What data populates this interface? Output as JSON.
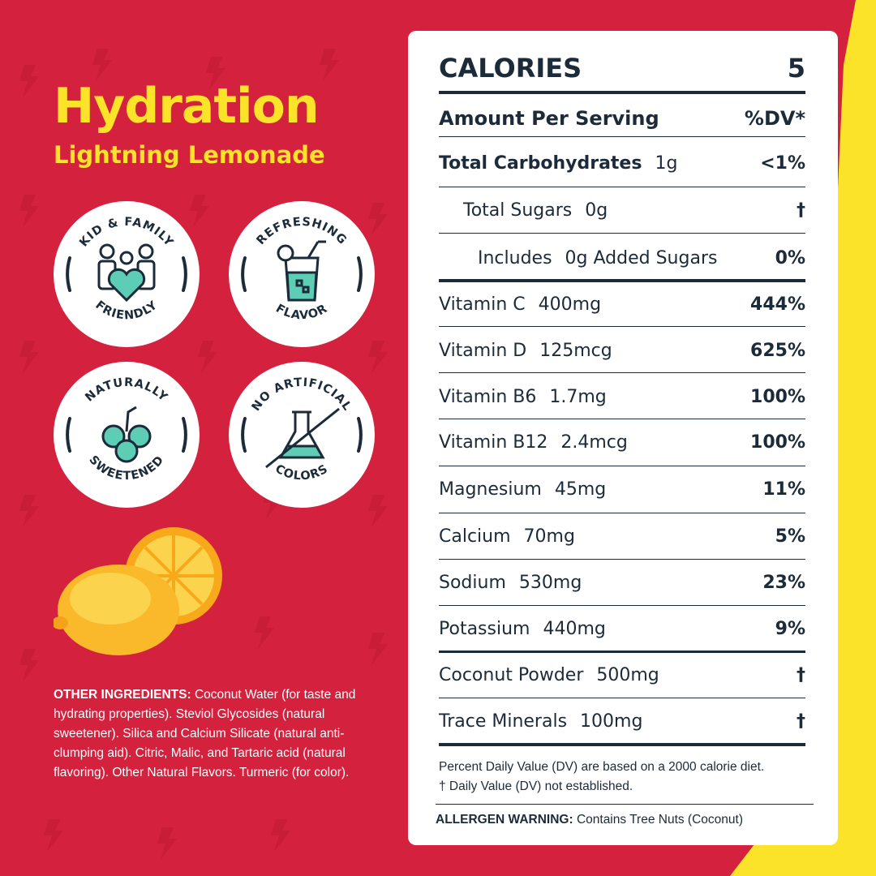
{
  "brand": {
    "title": "Hydration",
    "subtitle": "Lightning Lemonade",
    "colors": {
      "background": "#d4213d",
      "accent": "#fbe32a",
      "ink": "#1c2b3a",
      "mint": "#5ecdb5"
    }
  },
  "badges": [
    {
      "top": "KID & FAMILY",
      "bottom": "FRIENDLY",
      "icon": "family-heart-icon"
    },
    {
      "top": "REFRESHING",
      "bottom": "FLAVOR",
      "icon": "lemonade-glass-icon"
    },
    {
      "top": "NATURALLY",
      "bottom": "SWEETENED",
      "icon": "berries-icon"
    },
    {
      "top": "NO ARTIFICIAL",
      "bottom": "COLORS",
      "icon": "no-flask-icon"
    }
  ],
  "ingredients": {
    "label": "OTHER INGREDIENTS:",
    "text": " Coconut Water (for taste and hydrating properties). Steviol Glycosides (natural sweetener). Silica and Calcium Silicate (natural anti-clumping aid). Citric, Malic, and Tartaric acid (natural flavoring). Other Natural Flavors. Turmeric (for color)."
  },
  "facts": {
    "calories_label": "CALORIES",
    "calories_value": "5",
    "serving_label": "Amount Per Serving",
    "dv_label": "%DV*",
    "rows": [
      {
        "name": "Total Carbohydrates",
        "amount": "1g",
        "dv": "<1%"
      },
      {
        "name": "Total Sugars",
        "amount": "0g",
        "dv": "†"
      },
      {
        "name": "Includes",
        "amount": "0g Added Sugars",
        "dv": "0%"
      },
      {
        "name": "Vitamin C",
        "amount": "400mg",
        "dv": "444%"
      },
      {
        "name": "Vitamin D",
        "amount": "125mcg",
        "dv": "625%"
      },
      {
        "name": "Vitamin B6",
        "amount": "1.7mg",
        "dv": "100%"
      },
      {
        "name": "Vitamin B12",
        "amount": "2.4mcg",
        "dv": "100%"
      },
      {
        "name": "Magnesium",
        "amount": "45mg",
        "dv": "11%"
      },
      {
        "name": "Calcium",
        "amount": "70mg",
        "dv": "5%"
      },
      {
        "name": "Sodium",
        "amount": "530mg",
        "dv": "23%"
      },
      {
        "name": "Potassium",
        "amount": "440mg",
        "dv": "9%"
      },
      {
        "name": "Coconut Powder",
        "amount": "500mg",
        "dv": "†"
      },
      {
        "name": "Trace Minerals",
        "amount": "100mg",
        "dv": "†"
      }
    ],
    "footnote_1": "Percent Daily Value (DV) are based on a 2000 calorie diet.",
    "footnote_2": "† Daily Value (DV) not established.",
    "allergen_label": "ALLERGEN WARNING:",
    "allergen_text": " Contains Tree Nuts (Coconut)"
  }
}
